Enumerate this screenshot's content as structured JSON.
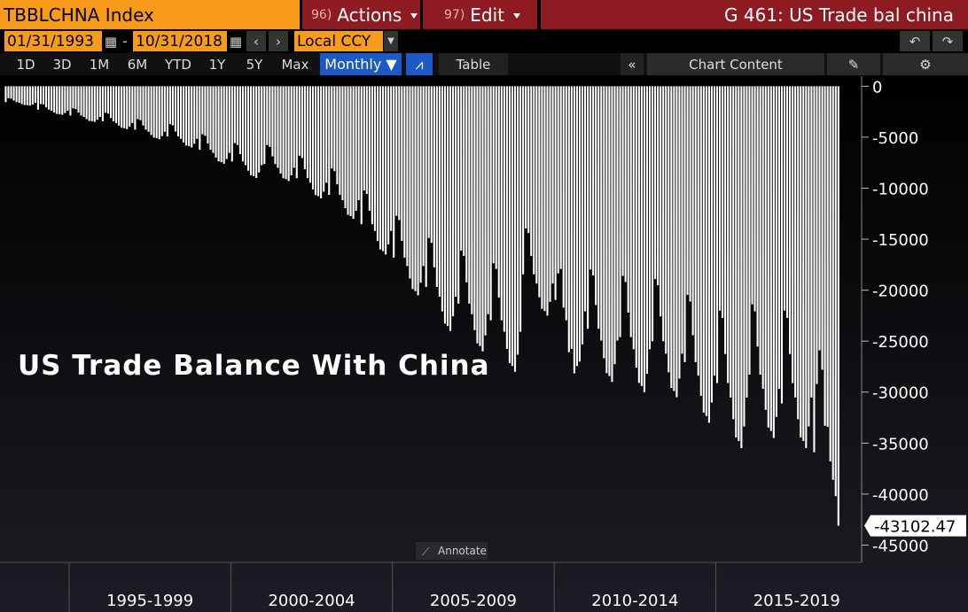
{
  "ui": {
    "ticker": "TBBLCHNA Index",
    "actions_num": "96)",
    "actions": "Actions",
    "edit_num": "97)",
    "edit": "Edit",
    "window_title": "G 461: US Trade bal china",
    "start_date": "01/31/1993",
    "end_date": "10/31/2018",
    "currency": "Local CCY",
    "periods": [
      "1D",
      "3D",
      "1M",
      "6M",
      "YTD",
      "1Y",
      "5Y",
      "Max"
    ],
    "frequency": "Monthly ▼",
    "table": "Table",
    "chart_content": "Chart Content",
    "annotate": "Annotate"
  },
  "chart_data": {
    "type": "bar",
    "title": "US Trade Balance With China",
    "color": "#ffffff",
    "xticks": [
      "1995-1999",
      "2000-2004",
      "2005-2009",
      "2010-2014",
      "2015-2019"
    ],
    "ylim": [
      -46700,
      900
    ],
    "yticks": [
      0,
      -5000,
      -10000,
      -15000,
      -20000,
      -25000,
      -30000,
      -35000,
      -40000,
      -45000
    ],
    "values": [
      -1560,
      -1180,
      -1220,
      -1410,
      -1560,
      -1630,
      -1750,
      -1840,
      -1860,
      -1900,
      -1790,
      -1630,
      -2300,
      -1740,
      -1790,
      -2070,
      -2300,
      -2410,
      -2580,
      -2720,
      -2740,
      -2800,
      -2630,
      -2410,
      -2870,
      -2170,
      -2240,
      -2590,
      -2870,
      -3010,
      -3220,
      -3400,
      -3430,
      -3500,
      -3290,
      -3010,
      -3440,
      -2600,
      -2690,
      -3110,
      -3440,
      -3610,
      -3860,
      -4070,
      -4120,
      -4200,
      -3950,
      -3610,
      -4260,
      -3220,
      -3330,
      -3850,
      -4260,
      -4470,
      -4780,
      -5040,
      -5100,
      -5200,
      -4890,
      -4470,
      -4920,
      -3720,
      -3840,
      -4440,
      -4920,
      -5160,
      -5520,
      -5820,
      -5880,
      -6000,
      -5640,
      -5160,
      -6230,
      -4710,
      -4860,
      -5620,
      -6230,
      -6540,
      -6990,
      -7370,
      -7450,
      -7600,
      -7140,
      -6540,
      -7380,
      -5580,
      -5760,
      -6660,
      -7380,
      -7740,
      -8280,
      -8730,
      -8820,
      -9000,
      -8460,
      -7740,
      -7630,
      -5770,
      -5950,
      -6880,
      -7630,
      -8000,
      -8560,
      -9020,
      -9110,
      -9300,
      -8740,
      -8000,
      -9020,
      -6820,
      -7040,
      -8140,
      -9020,
      -9460,
      -10120,
      -10670,
      -10780,
      -11000,
      -10340,
      -9460,
      -10660,
      -8060,
      -8320,
      -9620,
      -10660,
      -11180,
      -11960,
      -12610,
      -12740,
      -13000,
      -12220,
      -11180,
      -13530,
      -10230,
      -10560,
      -12210,
      -13530,
      -14190,
      -15180,
      -16010,
      -16170,
      -16500,
      -15510,
      -14190,
      -16810,
      -12710,
      -13120,
      -15170,
      -16810,
      -17630,
      -18860,
      -19890,
      -20090,
      -20500,
      -19270,
      -17630,
      -19680,
      -14880,
      -15360,
      -17760,
      -19680,
      -20640,
      -22080,
      -23280,
      -23520,
      -24000,
      -22560,
      -20640,
      -21320,
      -16120,
      -16640,
      -19240,
      -21320,
      -22360,
      -23920,
      -25220,
      -25480,
      -26000,
      -24440,
      -22360,
      -22960,
      -17360,
      -17920,
      -20720,
      -22960,
      -24080,
      -25760,
      -27160,
      -27440,
      -28000,
      -26320,
      -24080,
      -18450,
      -13950,
      -14400,
      -16650,
      -18450,
      -19350,
      -20700,
      -21830,
      -22050,
      -22500,
      -21150,
      -19350,
      -20960,
      -18360,
      -17920,
      -21720,
      -22960,
      -26080,
      -25760,
      -28160,
      -27440,
      -27000,
      -25320,
      -22080,
      -23780,
      -17980,
      -18560,
      -21460,
      -23780,
      -24940,
      -26680,
      -28130,
      -28420,
      -29000,
      -27260,
      -24940,
      -24600,
      -18600,
      -19200,
      -22200,
      -24600,
      -25800,
      -27600,
      -29100,
      -29400,
      -30000,
      -28200,
      -25800,
      -25010,
      -18910,
      -19520,
      -22570,
      -25010,
      -26230,
      -28060,
      -29590,
      -29890,
      -30500,
      -28670,
      -26230,
      -27060,
      -20460,
      -21120,
      -24420,
      -27060,
      -28380,
      -30360,
      -32010,
      -32340,
      -33000,
      -31020,
      -28380,
      -29110,
      -22010,
      -22720,
      -26270,
      -29110,
      -30530,
      -32660,
      -34440,
      -34790,
      -35500,
      -33370,
      -30530,
      -28290,
      -21390,
      -22080,
      -25530,
      -28290,
      -29670,
      -31740,
      -33470,
      -33810,
      -34500,
      -32430,
      -29670,
      -31110,
      -22010,
      -22720,
      -26270,
      -29110,
      -30530,
      -32660,
      -34440,
      -34790,
      -35500,
      -33370,
      -30530,
      -35900,
      -29200,
      -25900,
      -27800,
      -33300,
      -33400,
      -36800,
      -38600,
      -40200,
      -43102.47
    ]
  }
}
